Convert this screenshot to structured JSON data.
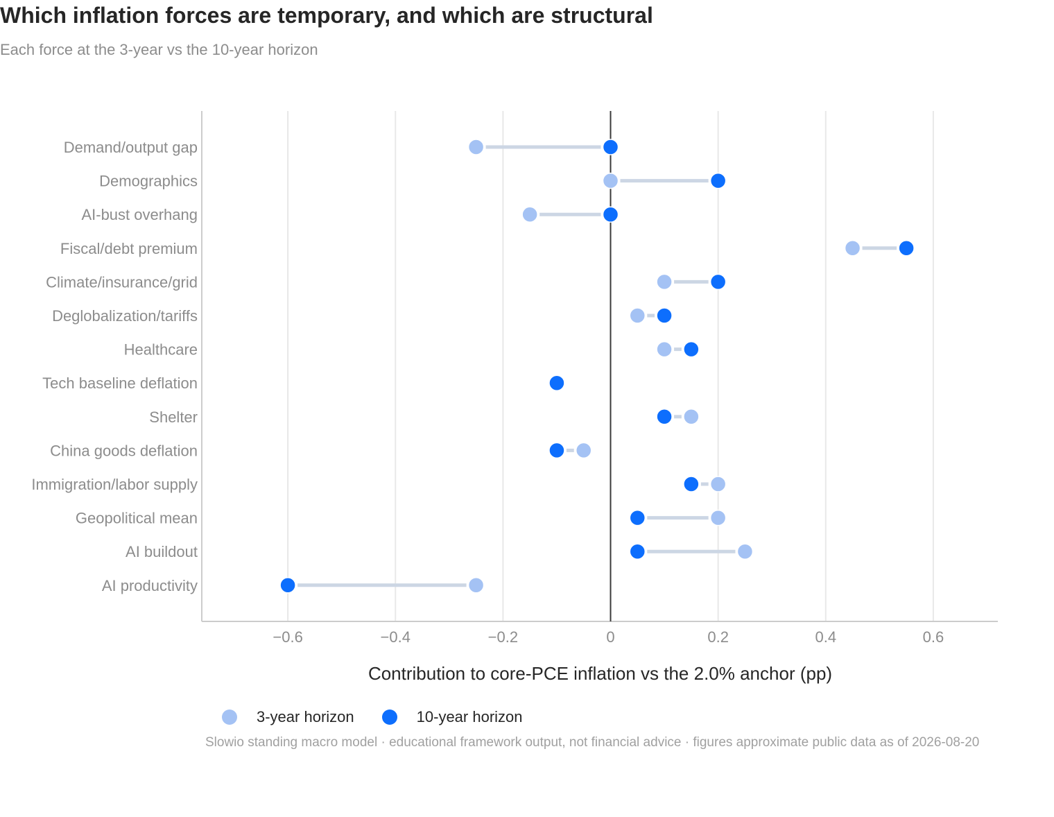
{
  "title": "Which inflation forces are temporary, and which are structural",
  "subtitle": "Each force at the 3-year vs the 10-year horizon",
  "source": "Slowio standing macro model · educational framework output, not financial advice · figures approximate public data as of 2026-08-20",
  "colors": {
    "three_year": "#a4c2f4",
    "ten_year": "#0d6efd",
    "connector": "#ccd6e4"
  },
  "chart_data": {
    "type": "dumbbell",
    "xlabel": "Contribution to core-PCE inflation vs the 2.0% anchor  (pp)",
    "ylabel": "",
    "xlim": [
      -0.76,
      0.72
    ],
    "xticks": [
      -0.6,
      -0.4,
      -0.2,
      0,
      0.2,
      0.4,
      0.6
    ],
    "xtick_labels": [
      "−0.6",
      "−0.4",
      "−0.2",
      "0",
      "0.2",
      "0.4",
      "0.6"
    ],
    "grid": "vertical",
    "zero_line": 0,
    "legend_position": "bottom-left",
    "series": [
      {
        "key": "three_year",
        "name": "3-year horizon"
      },
      {
        "key": "ten_year",
        "name": "10-year horizon"
      }
    ],
    "categories": [
      "Demand/output gap",
      "Demographics",
      "AI-bust overhang",
      "Fiscal/debt premium",
      "Climate/insurance/grid",
      "Deglobalization/tariffs",
      "Healthcare",
      "Tech baseline deflation",
      "Shelter",
      "China goods deflation",
      "Immigration/labor supply",
      "Geopolitical mean",
      "AI buildout",
      "AI productivity"
    ],
    "three_year": [
      -0.25,
      0,
      -0.15,
      0.45,
      0.1,
      0.05,
      0.1,
      -0.1,
      0.15,
      -0.05,
      0.2,
      0.2,
      0.25,
      -0.25
    ],
    "ten_year": [
      0,
      0.2,
      0,
      0.55,
      0.2,
      0.1,
      0.15,
      -0.1,
      0.1,
      -0.1,
      0.15,
      0.05,
      0.05,
      -0.6
    ]
  }
}
